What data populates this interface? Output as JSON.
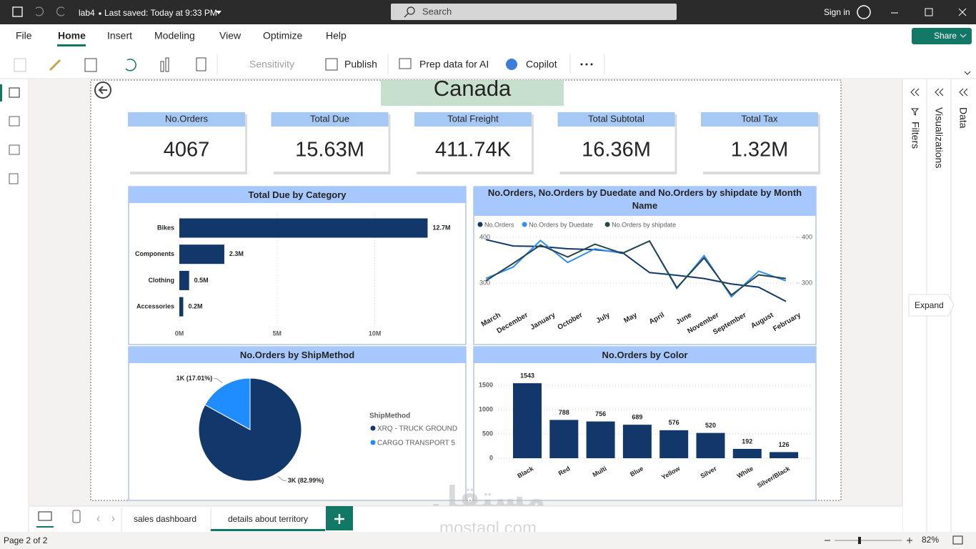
{
  "titlebar": {
    "file_name": "lab4",
    "saved": "Last saved: Today at 9:33 PM",
    "search": "Search",
    "sign_in": "Sign in"
  },
  "menu": {
    "items": [
      "File",
      "Home",
      "Insert",
      "Modeling",
      "View",
      "Optimize",
      "Help"
    ],
    "share": "Share"
  },
  "ribbon": {
    "sensitivity": "Sensitivity",
    "publish": "Publish",
    "prep": "Prep data for AI",
    "copilot": "Copilot"
  },
  "report": {
    "title": "Canada",
    "cards": [
      {
        "label": "No.Orders",
        "value": "4067"
      },
      {
        "label": "Total Due",
        "value": "15.63M"
      },
      {
        "label": "Total Freight",
        "value": "411.74K"
      },
      {
        "label": "Total Subtotal",
        "value": "16.36M"
      },
      {
        "label": "Total Tax",
        "value": "1.32M"
      }
    ]
  },
  "charts": [
    {
      "type": "bar",
      "orientation": "horizontal",
      "title": "Total Due by Category",
      "categories": [
        "Bikes",
        "Components",
        "Clothing",
        "Accessories"
      ],
      "values": [
        12.7,
        2.3,
        0.5,
        0.2
      ],
      "value_labels": [
        "12.7M",
        "2.3M",
        "0.5M",
        "0.2M"
      ],
      "color": "#12386b",
      "xlim": [
        0,
        14.4
      ],
      "xticks": [
        {
          "value": 0,
          "label": "0M"
        },
        {
          "value": 5,
          "label": "5M"
        },
        {
          "value": 10,
          "label": "10M"
        }
      ],
      "grid": true
    },
    {
      "type": "line",
      "title": "No.Orders, No.Orders by Duedate and No.Orders by shipdate by Month Name",
      "categories": [
        "March",
        "December",
        "January",
        "October",
        "July",
        "May",
        "April",
        "June",
        "November",
        "September",
        "August",
        "February"
      ],
      "series": [
        {
          "name": "No.Orders",
          "color": "#12386b",
          "values": [
            395,
            381,
            380,
            375,
            373,
            367,
            323,
            317,
            310,
            298,
            291,
            260
          ]
        },
        {
          "name": "No.Orders by Duedate",
          "color": "#2f8ff5",
          "values": [
            310,
            335,
            393,
            345,
            375,
            365,
            392,
            288,
            360,
            270,
            326,
            305
          ]
        },
        {
          "name": "No.Orders by shipdate",
          "color": "#26474a",
          "axis": "y2",
          "values": [
            305,
            343,
            383,
            357,
            385,
            365,
            392,
            290,
            355,
            274,
            318,
            310
          ]
        }
      ],
      "ylim": [
        250,
        410
      ],
      "yticks": [
        300,
        400
      ],
      "y2lim": [
        250,
        410
      ],
      "y2ticks": [
        300,
        400
      ],
      "grid": true
    },
    {
      "type": "pie",
      "title": "No.Orders by ShipMethod",
      "legend_title": "ShipMethod",
      "categories": [
        "XRQ - TRUCK GROUND",
        "CARGO TRANSPORT 5"
      ],
      "values": [
        82.99,
        17.01
      ],
      "value_labels": [
        "3K (82.99%)",
        "1K (17.01%)"
      ],
      "colors": [
        "#12386b",
        "#1f8cff"
      ]
    },
    {
      "type": "bar",
      "orientation": "vertical",
      "title": "No.Orders by Color",
      "categories": [
        "Black",
        "Red",
        "Multi",
        "Blue",
        "Yellow",
        "Silver",
        "White",
        "Silver/Black"
      ],
      "values": [
        1543,
        788,
        756,
        689,
        576,
        520,
        192,
        126
      ],
      "color": "#12386b",
      "ylim": [
        0,
        1650
      ],
      "yticks": [
        0,
        500,
        1000,
        1500
      ],
      "grid": true
    }
  ],
  "pages": {
    "tabs": [
      "sales dashboard",
      "details about territory"
    ]
  },
  "panes": {
    "filters": "Filters",
    "visualizations": "Visualizations",
    "data": "Data",
    "tooltip": "Expand"
  },
  "status": {
    "page": "Page 2 of 2",
    "zoom": "82%"
  },
  "watermark": {
    "arabic": "مستقل",
    "latin": "mostaql.com"
  }
}
